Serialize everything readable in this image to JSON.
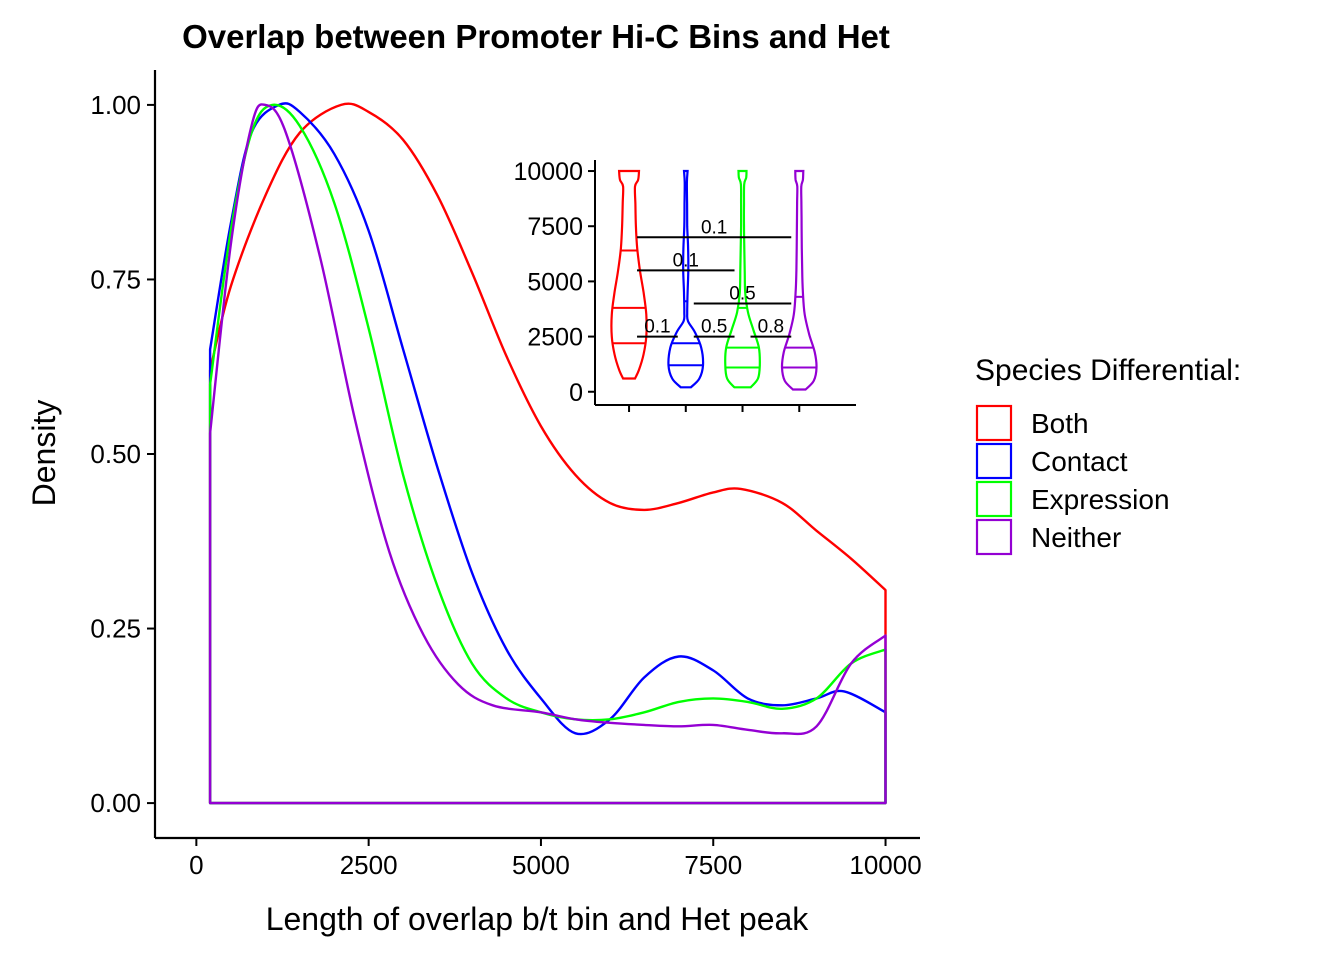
{
  "chart_data": {
    "type": "line",
    "title": "Overlap between Promoter Hi-C Bins and Het",
    "xlabel": "Length of overlap b/t bin and Het peak",
    "ylabel": "Density",
    "xlim": [
      -600,
      10500
    ],
    "ylim": [
      -0.05,
      1.05
    ],
    "x_ticks": [
      {
        "value": 0,
        "label": "0"
      },
      {
        "value": 2500,
        "label": "2500"
      },
      {
        "value": 5000,
        "label": "5000"
      },
      {
        "value": 7500,
        "label": "7500"
      },
      {
        "value": 10000,
        "label": "10000"
      }
    ],
    "y_ticks": [
      {
        "value": 0,
        "label": "0.00"
      },
      {
        "value": 0.25,
        "label": "0.25"
      },
      {
        "value": 0.5,
        "label": "0.50"
      },
      {
        "value": 0.75,
        "label": "0.75"
      },
      {
        "value": 1,
        "label": "1.00"
      }
    ],
    "grid": false,
    "legend": {
      "title": "Species Differential:",
      "position": "right"
    },
    "series": [
      {
        "name": "Both",
        "color": "#ff0000",
        "x": [
          200,
          500,
          1000,
          1500,
          2100,
          2500,
          3000,
          3500,
          4000,
          4500,
          5000,
          5500,
          6000,
          6500,
          7000,
          7500,
          7900,
          8500,
          9000,
          9500,
          10000
        ],
        "y": [
          0.62,
          0.74,
          0.87,
          0.96,
          1.0,
          0.99,
          0.95,
          0.87,
          0.76,
          0.64,
          0.54,
          0.47,
          0.43,
          0.42,
          0.43,
          0.445,
          0.45,
          0.43,
          0.39,
          0.35,
          0.305
        ]
      },
      {
        "name": "Contact",
        "color": "#0000ff",
        "x": [
          200,
          500,
          800,
          1200,
          1500,
          2000,
          2500,
          3000,
          3500,
          4000,
          4500,
          5000,
          5500,
          6000,
          6500,
          7000,
          7500,
          8000,
          8500,
          9000,
          9400,
          10000
        ],
        "y": [
          0.65,
          0.83,
          0.96,
          1.0,
          0.99,
          0.93,
          0.82,
          0.65,
          0.48,
          0.33,
          0.22,
          0.15,
          0.1,
          0.12,
          0.18,
          0.21,
          0.19,
          0.15,
          0.14,
          0.15,
          0.16,
          0.13
        ]
      },
      {
        "name": "Expression",
        "color": "#00ff00",
        "x": [
          200,
          500,
          800,
          1100,
          1500,
          2000,
          2500,
          3000,
          3500,
          4000,
          4500,
          5000,
          5500,
          6000,
          6500,
          7000,
          7500,
          8000,
          8500,
          9000,
          9500,
          10000
        ],
        "y": [
          0.6,
          0.82,
          0.96,
          1.0,
          0.97,
          0.86,
          0.68,
          0.47,
          0.31,
          0.2,
          0.15,
          0.13,
          0.12,
          0.12,
          0.13,
          0.145,
          0.15,
          0.145,
          0.135,
          0.15,
          0.2,
          0.22
        ]
      },
      {
        "name": "Neither",
        "color": "#9400d3",
        "x": [
          200,
          500,
          800,
          1000,
          1300,
          1800,
          2300,
          2800,
          3300,
          3800,
          4300,
          5000,
          5500,
          6000,
          6500,
          7000,
          7500,
          8000,
          8500,
          9000,
          9500,
          10000
        ],
        "y": [
          0.53,
          0.8,
          0.97,
          1.0,
          0.96,
          0.78,
          0.55,
          0.36,
          0.24,
          0.17,
          0.14,
          0.13,
          0.12,
          0.115,
          0.112,
          0.11,
          0.112,
          0.105,
          0.1,
          0.11,
          0.2,
          0.24
        ]
      }
    ],
    "inset": {
      "type": "violin",
      "ylim": [
        -600,
        10500
      ],
      "y_ticks": [
        {
          "value": 0,
          "label": "0"
        },
        {
          "value": 2500,
          "label": "2500"
        },
        {
          "value": 5000,
          "label": "5000"
        },
        {
          "value": 7500,
          "label": "7500"
        },
        {
          "value": 10000,
          "label": "10000"
        }
      ],
      "violins": [
        {
          "group": "Both",
          "color": "#ff0000",
          "min": 600,
          "max": 10000,
          "quantiles": [
            2200,
            3800,
            6400
          ],
          "profile": [
            [
              600,
              0.33
            ],
            [
              1000,
              0.55
            ],
            [
              1700,
              0.8
            ],
            [
              2500,
              0.95
            ],
            [
              3500,
              0.95
            ],
            [
              4500,
              0.8
            ],
            [
              5500,
              0.6
            ],
            [
              6500,
              0.45
            ],
            [
              7500,
              0.38
            ],
            [
              8500,
              0.35
            ],
            [
              9300,
              0.33
            ],
            [
              9600,
              0.5
            ],
            [
              10000,
              0.55
            ]
          ]
        },
        {
          "group": "Contact",
          "color": "#0000ff",
          "min": 200,
          "max": 10000,
          "quantiles": [
            1200,
            2200,
            4100
          ],
          "profile": [
            [
              200,
              0.28
            ],
            [
              600,
              0.75
            ],
            [
              1200,
              0.95
            ],
            [
              2000,
              0.85
            ],
            [
              2700,
              0.5
            ],
            [
              3200,
              0.12
            ],
            [
              3600,
              0.08
            ],
            [
              4500,
              0.1
            ],
            [
              5500,
              0.14
            ],
            [
              6500,
              0.13
            ],
            [
              7500,
              0.08
            ],
            [
              8500,
              0.07
            ],
            [
              9500,
              0.06
            ],
            [
              10000,
              0.1
            ]
          ]
        },
        {
          "group": "Expression",
          "color": "#00ff00",
          "min": 200,
          "max": 10000,
          "quantiles": [
            1100,
            2000,
            3800
          ],
          "profile": [
            [
              200,
              0.45
            ],
            [
              600,
              0.85
            ],
            [
              1200,
              0.95
            ],
            [
              2000,
              0.9
            ],
            [
              2800,
              0.6
            ],
            [
              3600,
              0.3
            ],
            [
              4500,
              0.15
            ],
            [
              5500,
              0.12
            ],
            [
              6500,
              0.1
            ],
            [
              7500,
              0.08
            ],
            [
              8500,
              0.08
            ],
            [
              9400,
              0.09
            ],
            [
              9700,
              0.2
            ],
            [
              10000,
              0.22
            ]
          ]
        },
        {
          "group": "Neither",
          "color": "#9400d3",
          "min": 100,
          "max": 10000,
          "quantiles": [
            1100,
            2000,
            4300
          ],
          "profile": [
            [
              100,
              0.35
            ],
            [
              500,
              0.8
            ],
            [
              1100,
              0.95
            ],
            [
              1800,
              0.85
            ],
            [
              2600,
              0.55
            ],
            [
              3500,
              0.3
            ],
            [
              4500,
              0.2
            ],
            [
              5500,
              0.16
            ],
            [
              6500,
              0.14
            ],
            [
              7500,
              0.13
            ],
            [
              8500,
              0.12
            ],
            [
              9300,
              0.11
            ],
            [
              9600,
              0.2
            ],
            [
              10000,
              0.22
            ]
          ]
        }
      ],
      "comparisons": [
        {
          "from": "Both",
          "to": "Neither",
          "y": 7000,
          "label": "0.1"
        },
        {
          "from": "Both",
          "to": "Expression",
          "y": 5500,
          "label": "0.1"
        },
        {
          "from": "Contact",
          "to": "Neither",
          "y": 4000,
          "label": "0.5"
        },
        {
          "from": "Both",
          "to": "Contact",
          "y": 2500,
          "label": "0.1"
        },
        {
          "from": "Contact",
          "to": "Expression",
          "y": 2500,
          "label": "0.5"
        },
        {
          "from": "Expression",
          "to": "Neither",
          "y": 2500,
          "label": "0.8"
        }
      ]
    }
  }
}
